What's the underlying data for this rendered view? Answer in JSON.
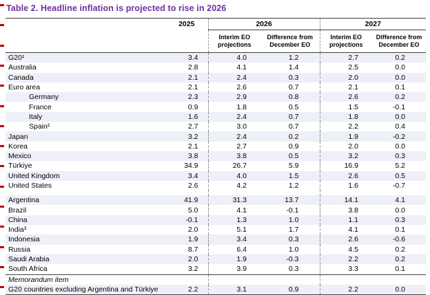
{
  "title": "Table 2.  Headline inflation is projected to rise in 2026",
  "colors": {
    "accent": "#7030A0",
    "row_shade": "#eef0f8",
    "change_mark": "#C00000",
    "rule": "#404040",
    "dashed": "#909090"
  },
  "decorations": {
    "change_mark_count": 15
  },
  "chart_data": {
    "type": "table",
    "title": "Table 2. Headline inflation is projected to rise in 2026",
    "columns": [
      "",
      "2025",
      "2026 Interim EO projections",
      "2026 Difference from December EO",
      "2027 Interim EO projections",
      "2027 Difference from December EO"
    ]
  },
  "table": {
    "headers": {
      "y2025": "2025",
      "y2026": "2026",
      "y2027": "2027",
      "interim": "Interim EO projections",
      "diff": "Difference from December EO"
    },
    "rows": [
      {
        "label": "G20¹",
        "values": [
          "3.4",
          "4.0",
          "1.2",
          "2.7",
          "0.2"
        ]
      },
      {
        "label": "Australia",
        "values": [
          "2.8",
          "4.1",
          "1.4",
          "2.5",
          "0.0"
        ]
      },
      {
        "label": "Canada",
        "values": [
          "2.1",
          "2.4",
          "0.3",
          "2.0",
          "0.0"
        ]
      },
      {
        "label": "Euro area",
        "values": [
          "2.1",
          "2.6",
          "0.7",
          "2.1",
          "0.1"
        ]
      },
      {
        "label": "Germany",
        "indent": true,
        "values": [
          "2.3",
          "2.9",
          "0.8",
          "2.6",
          "0.2"
        ]
      },
      {
        "label": "France",
        "indent": true,
        "values": [
          "0.9",
          "1.8",
          "0.5",
          "1.5",
          "-0.1"
        ]
      },
      {
        "label": "Italy",
        "indent": true,
        "values": [
          "1.6",
          "2.4",
          "0.7",
          "1.8",
          "0.0"
        ]
      },
      {
        "label": "Spain²",
        "indent": true,
        "values": [
          "2.7",
          "3.0",
          "0.7",
          "2.2",
          "0.4"
        ]
      },
      {
        "label": "Japan",
        "values": [
          "3.2",
          "2.4",
          "0.2",
          "1.9",
          "-0.2"
        ]
      },
      {
        "label": "Korea",
        "values": [
          "2.1",
          "2.7",
          "0.9",
          "2.0",
          "0.0"
        ]
      },
      {
        "label": "Mexico",
        "values": [
          "3.8",
          "3.8",
          "0.5",
          "3.2",
          "0.3"
        ]
      },
      {
        "label": "Türkiye",
        "values": [
          "34.9",
          "26.7",
          "5.9",
          "16.9",
          "5.2"
        ]
      },
      {
        "label": "United Kingdom",
        "values": [
          "3.4",
          "4.0",
          "1.5",
          "2.6",
          "0.5"
        ]
      },
      {
        "label": "United States",
        "values": [
          "2.6",
          "4.2",
          "1.2",
          "1.6",
          "-0.7"
        ]
      },
      {
        "type": "spacer"
      },
      {
        "label": "Argentina",
        "values": [
          "41.9",
          "31.3",
          "13.7",
          "14.1",
          "4.1"
        ]
      },
      {
        "label": "Brazil",
        "values": [
          "5.0",
          "4.1",
          "-0.1",
          "3.8",
          "0.0"
        ]
      },
      {
        "label": "China",
        "values": [
          "-0.1",
          "1.3",
          "1.0",
          "1.1",
          "0.3"
        ]
      },
      {
        "label": "India³",
        "values": [
          "2.0",
          "5.1",
          "1.7",
          "4.1",
          "0.1"
        ]
      },
      {
        "label": "Indonesia",
        "values": [
          "1.9",
          "3.4",
          "0.3",
          "2.6",
          "-0.6"
        ]
      },
      {
        "label": "Russia",
        "values": [
          "8.7",
          "6.4",
          "1.0",
          "4.5",
          "0.2"
        ]
      },
      {
        "label": "Saudi Arabia",
        "values": [
          "2.0",
          "1.9",
          "-0.3",
          "2.2",
          "0.2"
        ]
      },
      {
        "label": "South Africa",
        "values": [
          "3.2",
          "3.9",
          "0.3",
          "3.3",
          "0.1"
        ]
      },
      {
        "type": "memo_label",
        "label": "Memorandum item"
      },
      {
        "label": "G20 countries excluding Argentina and Türkiye",
        "values": [
          "2.2",
          "3.1",
          "0.9",
          "2.2",
          "0.0"
        ]
      }
    ]
  }
}
